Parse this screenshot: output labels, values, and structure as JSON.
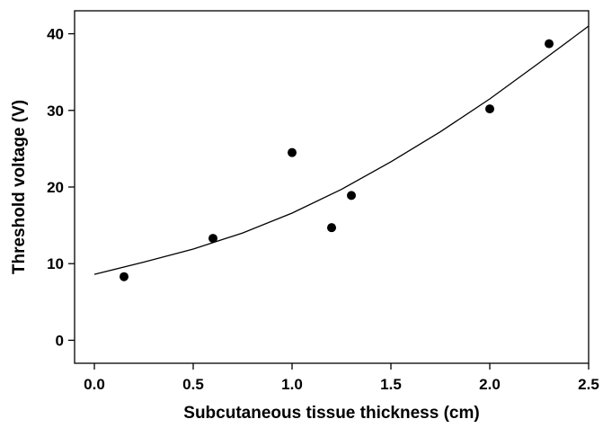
{
  "chart_data": {
    "type": "scatter",
    "title": "",
    "xlabel": "Subcutaneous tissue thickness (cm)",
    "ylabel": "Threshold voltage (V)",
    "xlim": [
      -0.1,
      2.5
    ],
    "ylim": [
      -3,
      43
    ],
    "x_ticks": [
      "0.0",
      "0.5",
      "1.0",
      "1.5",
      "2.0",
      "2.5"
    ],
    "y_ticks": [
      "0",
      "10",
      "20",
      "30",
      "40"
    ],
    "grid": false,
    "legend": "none",
    "points": {
      "x": [
        0.15,
        0.6,
        1.0,
        1.2,
        1.3,
        2.0,
        2.3
      ],
      "y": [
        8.3,
        13.3,
        24.5,
        14.7,
        18.9,
        30.2,
        38.7
      ]
    },
    "fit_curve": {
      "x": [
        0.0,
        0.25,
        0.5,
        0.75,
        1.0,
        1.25,
        1.5,
        1.75,
        2.0,
        2.25,
        2.5
      ],
      "y": [
        8.6,
        10.2,
        11.9,
        14.0,
        16.6,
        19.7,
        23.3,
        27.2,
        31.5,
        36.2,
        41.0
      ]
    },
    "colors": {
      "points": "#000000",
      "curve": "#000000",
      "axes": "#000000"
    }
  }
}
